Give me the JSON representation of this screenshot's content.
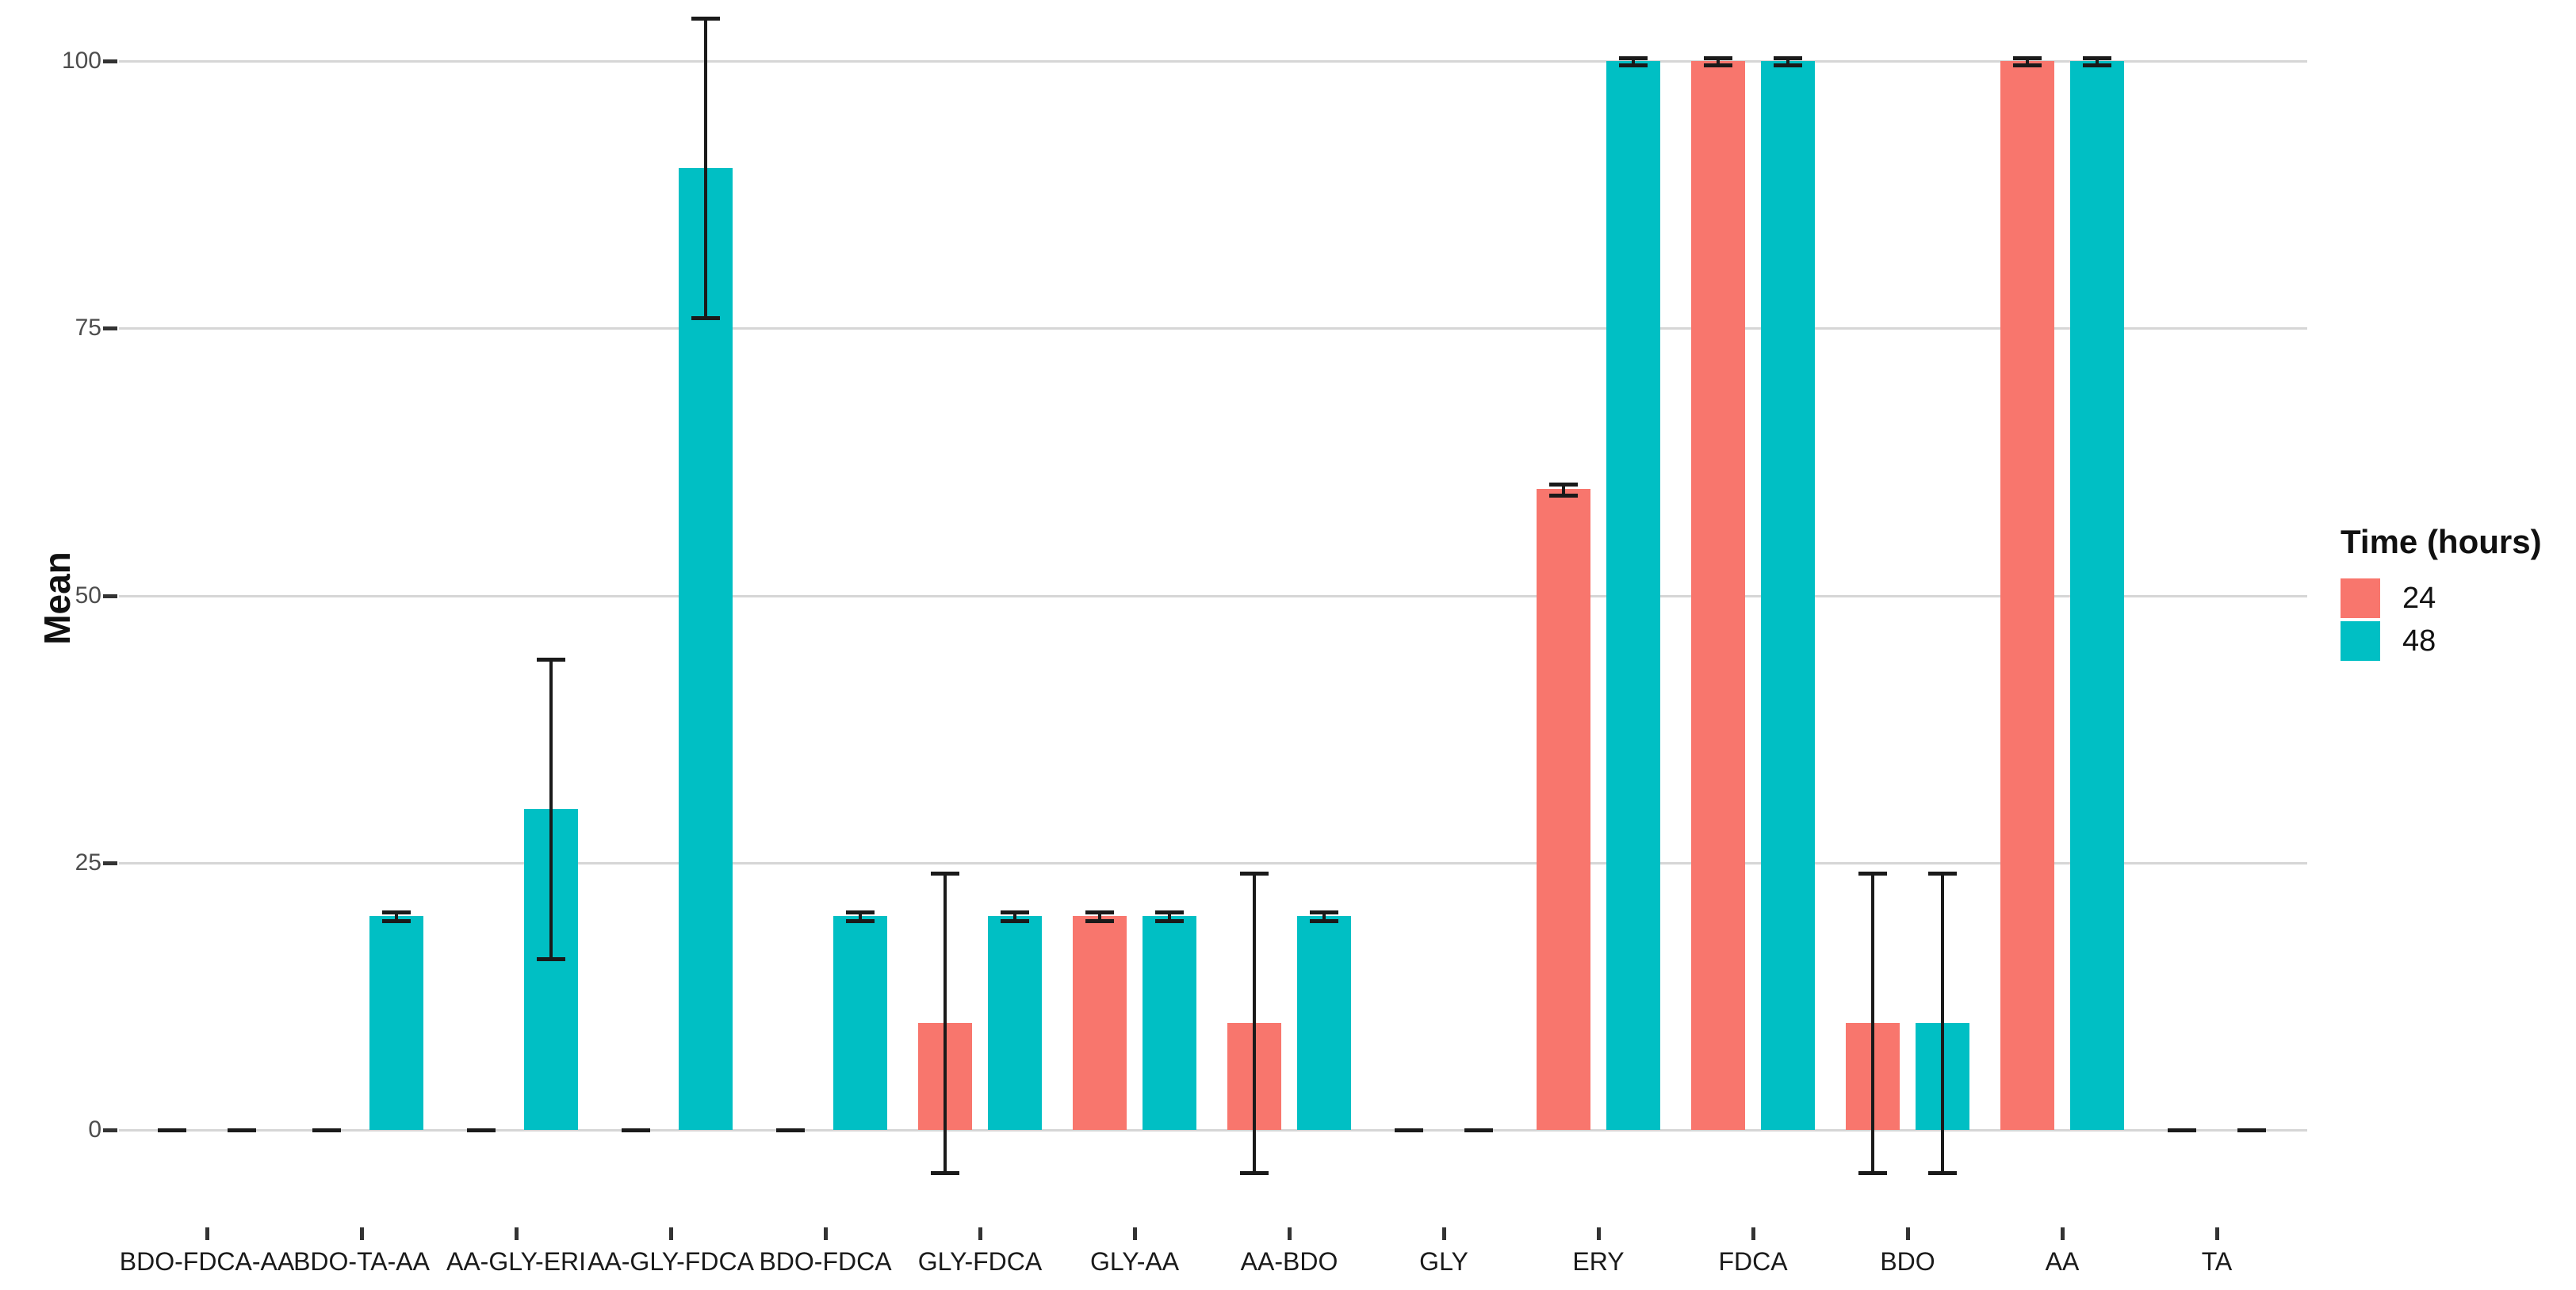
{
  "figure": {
    "background": "#FFFFFF"
  },
  "y_axis": {
    "title": "Mean",
    "tick_values": [
      0,
      25,
      50,
      75,
      100
    ],
    "tick_labels": [
      "0",
      "25",
      "50",
      "75",
      "100"
    ],
    "text_color": "#4D4D4D",
    "grid_color": "#D6D6D6"
  },
  "legend": {
    "title": "Time (hours)",
    "items": [
      {
        "label": "24",
        "color": "#F8766D"
      },
      {
        "label": "48",
        "color": "#00BFC4"
      }
    ]
  },
  "chart_data": {
    "type": "bar",
    "title": "",
    "categories": [
      "BDO-FDCA-AA",
      "BDO-TA-AA",
      "AA-GLY-ERI",
      "AA-GLY-FDCA",
      "BDO-FDCA",
      "GLY-FDCA",
      "GLY-AA",
      "AA-BDO",
      "GLY",
      "ERY",
      "FDCA",
      "BDO",
      "AA",
      "TA"
    ],
    "series": [
      {
        "name": "24",
        "color": "#F8766D",
        "values": [
          0,
          0,
          0,
          0,
          0,
          10,
          20,
          10,
          0,
          60,
          100,
          10,
          100,
          0
        ],
        "error_low": [
          0,
          0,
          0,
          0,
          0,
          -4,
          19.6,
          -4,
          0,
          59.4,
          99.6,
          -4,
          99.6,
          0
        ],
        "error_high": [
          0,
          0,
          0,
          0,
          0,
          24,
          20.4,
          24,
          0,
          60.4,
          100.3,
          24,
          100.3,
          0
        ]
      },
      {
        "name": "48",
        "color": "#00BFC4",
        "values": [
          0,
          20,
          30,
          90,
          20,
          20,
          20,
          20,
          0,
          100,
          100,
          10,
          100,
          0
        ],
        "error_low": [
          0,
          19.6,
          16,
          76,
          19.6,
          19.6,
          19.6,
          19.6,
          0,
          99.6,
          99.6,
          -4,
          99.6,
          0
        ],
        "error_high": [
          0,
          20.4,
          44,
          104,
          20.4,
          20.4,
          20.4,
          20.4,
          0,
          100.3,
          100.3,
          24,
          100.3,
          0
        ]
      }
    ],
    "xlabel": "",
    "ylabel": "Mean",
    "ylim": [
      0,
      100
    ],
    "grid": "horizontal",
    "legend_position": "right",
    "error_bars": true,
    "error_color": "#1A1A1A"
  }
}
